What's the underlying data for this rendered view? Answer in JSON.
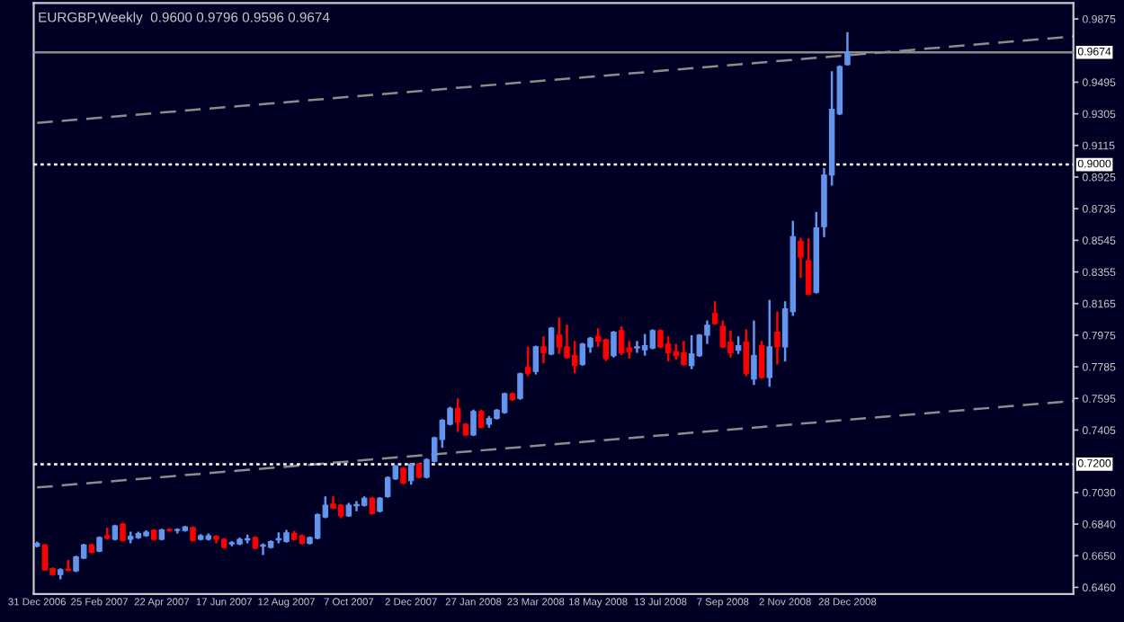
{
  "chart_data": {
    "type": "candlestick",
    "title": "EURGBP,Weekly  0.9600 0.9796 0.9596 0.9674",
    "x": [
      "2006-12-31",
      "2007-01-07",
      "2007-01-14",
      "2007-01-21",
      "2007-01-28",
      "2007-02-04",
      "2007-02-11",
      "2007-02-18",
      "2007-02-25",
      "2007-03-04",
      "2007-03-11",
      "2007-03-18",
      "2007-03-25",
      "2007-04-01",
      "2007-04-08",
      "2007-04-15",
      "2007-04-22",
      "2007-04-29",
      "2007-05-06",
      "2007-05-13",
      "2007-05-20",
      "2007-05-27",
      "2007-06-03",
      "2007-06-10",
      "2007-06-17",
      "2007-06-24",
      "2007-07-01",
      "2007-07-08",
      "2007-07-15",
      "2007-07-22",
      "2007-07-29",
      "2007-08-05",
      "2007-08-12",
      "2007-08-19",
      "2007-08-26",
      "2007-09-02",
      "2007-09-09",
      "2007-09-16",
      "2007-09-23",
      "2007-09-30",
      "2007-10-07",
      "2007-10-14",
      "2007-10-21",
      "2007-10-28",
      "2007-11-04",
      "2007-11-11",
      "2007-11-18",
      "2007-11-25",
      "2007-12-02",
      "2007-12-09",
      "2007-12-16",
      "2007-12-23",
      "2007-12-30",
      "2008-01-06",
      "2008-01-13",
      "2008-01-20",
      "2008-01-27",
      "2008-02-03",
      "2008-02-10",
      "2008-02-17",
      "2008-02-24",
      "2008-03-02",
      "2008-03-09",
      "2008-03-16",
      "2008-03-23",
      "2008-03-30",
      "2008-04-06",
      "2008-04-13",
      "2008-04-20",
      "2008-04-27",
      "2008-05-04",
      "2008-05-11",
      "2008-05-18",
      "2008-05-25",
      "2008-06-01",
      "2008-06-08",
      "2008-06-15",
      "2008-06-22",
      "2008-06-29",
      "2008-07-06",
      "2008-07-13",
      "2008-07-20",
      "2008-07-27",
      "2008-08-03",
      "2008-08-10",
      "2008-08-17",
      "2008-08-24",
      "2008-08-31",
      "2008-09-07",
      "2008-09-14",
      "2008-09-21",
      "2008-09-28",
      "2008-10-05",
      "2008-10-12",
      "2008-10-19",
      "2008-10-26",
      "2008-11-02",
      "2008-11-09",
      "2008-11-16",
      "2008-11-23",
      "2008-11-30",
      "2008-12-07",
      "2008-12-14",
      "2008-12-21",
      "2008-12-28"
    ],
    "ohlc": [
      [
        0.6707,
        0.6735,
        0.67,
        0.6724
      ],
      [
        0.6714,
        0.672,
        0.656,
        0.6566
      ],
      [
        0.6573,
        0.658,
        0.653,
        0.6537
      ],
      [
        0.6537,
        0.6575,
        0.6509,
        0.6566
      ],
      [
        0.657,
        0.6625,
        0.6556,
        0.6563
      ],
      [
        0.6559,
        0.665,
        0.6552,
        0.6643
      ],
      [
        0.6636,
        0.6722,
        0.663,
        0.6714
      ],
      [
        0.6714,
        0.6722,
        0.6665,
        0.6671
      ],
      [
        0.6678,
        0.6766,
        0.6672,
        0.6759
      ],
      [
        0.677,
        0.6819,
        0.6749,
        0.6756
      ],
      [
        0.6749,
        0.6837,
        0.6742,
        0.683
      ],
      [
        0.684,
        0.6848,
        0.6735,
        0.6742
      ],
      [
        0.6749,
        0.6795,
        0.6724,
        0.6766
      ],
      [
        0.6759,
        0.6795,
        0.6752,
        0.6784
      ],
      [
        0.677,
        0.6802,
        0.6763,
        0.6791
      ],
      [
        0.6802,
        0.6809,
        0.6742,
        0.6749
      ],
      [
        0.6749,
        0.6812,
        0.6742,
        0.6805
      ],
      [
        0.6808,
        0.6815,
        0.6795,
        0.6802
      ],
      [
        0.6802,
        0.6815,
        0.6784,
        0.6808
      ],
      [
        0.6802,
        0.683,
        0.6795,
        0.6823
      ],
      [
        0.6819,
        0.6826,
        0.6735,
        0.6742
      ],
      [
        0.6749,
        0.678,
        0.6742,
        0.677
      ],
      [
        0.6749,
        0.6784,
        0.6742,
        0.677
      ],
      [
        0.6766,
        0.6773,
        0.6724,
        0.6749
      ],
      [
        0.6749,
        0.6756,
        0.6693,
        0.67
      ],
      [
        0.6721,
        0.6738,
        0.6707,
        0.6728
      ],
      [
        0.6721,
        0.6759,
        0.6714,
        0.6749
      ],
      [
        0.6745,
        0.6777,
        0.6724,
        0.6752
      ],
      [
        0.6759,
        0.6766,
        0.6689,
        0.6696
      ],
      [
        0.6707,
        0.6724,
        0.6654,
        0.6714
      ],
      [
        0.67,
        0.6742,
        0.6693,
        0.6735
      ],
      [
        0.6745,
        0.6791,
        0.6724,
        0.6752
      ],
      [
        0.6735,
        0.6805,
        0.6728,
        0.6788
      ],
      [
        0.6784,
        0.6798,
        0.6742,
        0.6749
      ],
      [
        0.677,
        0.6777,
        0.6717,
        0.6724
      ],
      [
        0.6724,
        0.6766,
        0.6717,
        0.6759
      ],
      [
        0.6756,
        0.6904,
        0.6749,
        0.6897
      ],
      [
        0.6883,
        0.7006,
        0.6876,
        0.6953
      ],
      [
        0.696,
        0.7006,
        0.6929,
        0.6936
      ],
      [
        0.6953,
        0.696,
        0.6876,
        0.689
      ],
      [
        0.689,
        0.6967,
        0.6883,
        0.6953
      ],
      [
        0.695,
        0.6978,
        0.6918,
        0.6957
      ],
      [
        0.6953,
        0.7006,
        0.6946,
        0.6995
      ],
      [
        0.6995,
        0.7002,
        0.6897,
        0.6904
      ],
      [
        0.6918,
        0.7002,
        0.6911,
        0.6995
      ],
      [
        0.7006,
        0.7126,
        0.6999,
        0.7119
      ],
      [
        0.7112,
        0.7196,
        0.7105,
        0.7189
      ],
      [
        0.7175,
        0.7182,
        0.708,
        0.7087
      ],
      [
        0.7101,
        0.7207,
        0.7077,
        0.72
      ],
      [
        0.72,
        0.7207,
        0.7115,
        0.7122
      ],
      [
        0.7122,
        0.7235,
        0.7115,
        0.7228
      ],
      [
        0.7217,
        0.7365,
        0.721,
        0.7358
      ],
      [
        0.7348,
        0.7471,
        0.7298,
        0.7464
      ],
      [
        0.744,
        0.7545,
        0.7433,
        0.7535
      ],
      [
        0.7535,
        0.7595,
        0.7394,
        0.7454
      ],
      [
        0.744,
        0.7447,
        0.7369,
        0.7376
      ],
      [
        0.7376,
        0.7528,
        0.7369,
        0.7517
      ],
      [
        0.7517,
        0.7528,
        0.7415,
        0.7422
      ],
      [
        0.744,
        0.7489,
        0.7419,
        0.7475
      ],
      [
        0.7475,
        0.7531,
        0.7468,
        0.7524
      ],
      [
        0.751,
        0.763,
        0.7503,
        0.7623
      ],
      [
        0.7623,
        0.763,
        0.7581,
        0.7588
      ],
      [
        0.7595,
        0.775,
        0.7587,
        0.7743
      ],
      [
        0.7781,
        0.7905,
        0.7729,
        0.7746
      ],
      [
        0.7757,
        0.7912,
        0.7739,
        0.7905
      ],
      [
        0.7905,
        0.7968,
        0.7806,
        0.7869
      ],
      [
        0.7862,
        0.8024,
        0.7855,
        0.8017
      ],
      [
        0.7975,
        0.8081,
        0.7862,
        0.7905
      ],
      [
        0.7905,
        0.8038,
        0.7834,
        0.7841
      ],
      [
        0.7852,
        0.794,
        0.7746,
        0.7792
      ],
      [
        0.7799,
        0.7929,
        0.7792,
        0.7922
      ],
      [
        0.7905,
        0.7964,
        0.7869,
        0.7957
      ],
      [
        0.7968,
        0.8017,
        0.7905,
        0.794
      ],
      [
        0.7947,
        0.7954,
        0.782,
        0.7834
      ],
      [
        0.7852,
        0.8,
        0.7841,
        0.7993
      ],
      [
        0.8003,
        0.8028,
        0.7855,
        0.7869
      ],
      [
        0.7898,
        0.794,
        0.7834,
        0.7876
      ],
      [
        0.7898,
        0.794,
        0.7869,
        0.7905
      ],
      [
        0.7887,
        0.7982,
        0.7852,
        0.7912
      ],
      [
        0.7898,
        0.801,
        0.789,
        0.8003
      ],
      [
        0.8003,
        0.801,
        0.7898,
        0.7905
      ],
      [
        0.7922,
        0.7968,
        0.7817,
        0.7869
      ],
      [
        0.7876,
        0.7922,
        0.7827,
        0.7852
      ],
      [
        0.7869,
        0.794,
        0.7792,
        0.7799
      ],
      [
        0.7792,
        0.7975,
        0.7771,
        0.7862
      ],
      [
        0.7852,
        0.7982,
        0.7845,
        0.7975
      ],
      [
        0.7975,
        0.8063,
        0.7922,
        0.8035
      ],
      [
        0.8105,
        0.8179,
        0.8038,
        0.8045
      ],
      [
        0.8028,
        0.8063,
        0.7898,
        0.7905
      ],
      [
        0.7933,
        0.8003,
        0.7841,
        0.7869
      ],
      [
        0.7884,
        0.7968,
        0.7862,
        0.7912
      ],
      [
        0.7933,
        0.801,
        0.7729,
        0.7746
      ],
      [
        0.7711,
        0.8063,
        0.7676,
        0.7852
      ],
      [
        0.7912,
        0.794,
        0.7714,
        0.7721
      ],
      [
        0.7721,
        0.8187,
        0.7665,
        0.7905
      ],
      [
        0.7993,
        0.8116,
        0.7799,
        0.7905
      ],
      [
        0.7905,
        0.8179,
        0.7817,
        0.8134
      ],
      [
        0.8116,
        0.8662,
        0.8091,
        0.8567
      ],
      [
        0.8539,
        0.856,
        0.832,
        0.8444
      ],
      [
        0.8423,
        0.8557,
        0.8215,
        0.8222
      ],
      [
        0.8232,
        0.8715,
        0.8225,
        0.862
      ],
      [
        0.8627,
        0.8979,
        0.8564,
        0.8937
      ],
      [
        0.8937,
        0.9561,
        0.8874,
        0.9332
      ],
      [
        0.9304,
        0.9596,
        0.9297,
        0.9589
      ],
      [
        0.96,
        0.9796,
        0.9596,
        0.9674
      ]
    ],
    "colors": [
      "#6495ed",
      "#ff0000",
      "#ff0000",
      "#6495ed",
      "#ff0000",
      "#6495ed",
      "#6495ed",
      "#ff0000",
      "#6495ed",
      "#ff0000",
      "#6495ed",
      "#ff0000",
      "#6495ed",
      "#6495ed",
      "#6495ed",
      "#ff0000",
      "#6495ed",
      "#ff0000",
      "#6495ed",
      "#6495ed",
      "#ff0000",
      "#6495ed",
      "#6495ed",
      "#ff0000",
      "#ff0000",
      "#6495ed",
      "#6495ed",
      "#6495ed",
      "#ff0000",
      "#6495ed",
      "#6495ed",
      "#6495ed",
      "#6495ed",
      "#ff0000",
      "#ff0000",
      "#6495ed",
      "#6495ed",
      "#6495ed",
      "#ff0000",
      "#ff0000",
      "#6495ed",
      "#6495ed",
      "#6495ed",
      "#ff0000",
      "#6495ed",
      "#6495ed",
      "#6495ed",
      "#ff0000",
      "#6495ed",
      "#ff0000",
      "#6495ed",
      "#6495ed",
      "#6495ed",
      "#6495ed",
      "#ff0000",
      "#ff0000",
      "#6495ed",
      "#ff0000",
      "#6495ed",
      "#6495ed",
      "#6495ed",
      "#ff0000",
      "#6495ed",
      "#ff0000",
      "#6495ed",
      "#ff0000",
      "#6495ed",
      "#ff0000",
      "#ff0000",
      "#ff0000",
      "#6495ed",
      "#6495ed",
      "#ff0000",
      "#ff0000",
      "#6495ed",
      "#ff0000",
      "#ff0000",
      "#6495ed",
      "#6495ed",
      "#6495ed",
      "#ff0000",
      "#ff0000",
      "#ff0000",
      "#ff0000",
      "#6495ed",
      "#6495ed",
      "#6495ed",
      "#ff0000",
      "#ff0000",
      "#ff0000",
      "#6495ed",
      "#ff0000",
      "#6495ed",
      "#ff0000",
      "#6495ed",
      "#ff0000",
      "#6495ed",
      "#6495ed",
      "#ff0000",
      "#ff0000",
      "#6495ed",
      "#6495ed",
      "#6495ed",
      "#6495ed",
      "#6495ed"
    ],
    "series": [
      {
        "type": "line",
        "color": "#8c8c8c",
        "line_style": "dashed",
        "x": [
          "2006-12-31",
          "2009-07-19"
        ],
        "values": [
          0.925,
          0.977
        ]
      },
      {
        "type": "line",
        "color": "#8c8c8c",
        "line_style": "dashed",
        "x": [
          "2006-12-31",
          "2009-07-19"
        ],
        "values": [
          0.706,
          0.758
        ]
      }
    ],
    "ref_lines": [
      {
        "axis": "y",
        "value": 0.9674,
        "label": "0.9674",
        "color": "#8c8c8c",
        "line_style": "solid"
      },
      {
        "axis": "y",
        "value": 0.9,
        "label": "0.9000",
        "color": "#ffffff",
        "line_style": "dotted"
      },
      {
        "axis": "y",
        "value": 0.72,
        "label": "0.7200",
        "color": "#ffffff",
        "line_style": "dotted"
      }
    ],
    "xlim": [
      "2006-12-28",
      "2009-07-19"
    ],
    "xticks": [
      {
        "value": "2006-12-31",
        "label": "31 Dec 2006"
      },
      {
        "value": "2007-02-25",
        "label": "25 Feb 2007"
      },
      {
        "value": "2007-04-22",
        "label": "22 Apr 2007"
      },
      {
        "value": "2007-06-17",
        "label": "17 Jun 2007"
      },
      {
        "value": "2007-08-12",
        "label": "12 Aug 2007"
      },
      {
        "value": "2007-10-07",
        "label": "7 Oct 2007"
      },
      {
        "value": "2007-12-02",
        "label": "2 Dec 2007"
      },
      {
        "value": "2008-01-27",
        "label": "27 Jan 2008"
      },
      {
        "value": "2008-03-23",
        "label": "23 Mar 2008"
      },
      {
        "value": "2008-05-18",
        "label": "18 May 2008"
      },
      {
        "value": "2008-07-13",
        "label": "13 Jul 2008"
      },
      {
        "value": "2008-09-07",
        "label": "7 Sep 2008"
      },
      {
        "value": "2008-11-02",
        "label": "2 Nov 2008"
      },
      {
        "value": "2008-12-28",
        "label": "28 Dec 2008"
      }
    ],
    "ylim": [
      0.642,
      0.997
    ],
    "yticks": [
      {
        "value": 0.9875,
        "label": "0.9875"
      },
      {
        "value": 0.9495,
        "label": "0.9495"
      },
      {
        "value": 0.9305,
        "label": "0.9305"
      },
      {
        "value": 0.9115,
        "label": "0.9115"
      },
      {
        "value": 0.8925,
        "label": "0.8925"
      },
      {
        "value": 0.8735,
        "label": "0.8735"
      },
      {
        "value": 0.8545,
        "label": "0.8545"
      },
      {
        "value": 0.8355,
        "label": "0.8355"
      },
      {
        "value": 0.8165,
        "label": "0.8165"
      },
      {
        "value": 0.7975,
        "label": "0.7975"
      },
      {
        "value": 0.7785,
        "label": "0.7785"
      },
      {
        "value": 0.7595,
        "label": "0.7595"
      },
      {
        "value": 0.7405,
        "label": "0.7405"
      },
      {
        "value": 0.703,
        "label": "0.7030"
      },
      {
        "value": 0.684,
        "label": "0.6840"
      },
      {
        "value": 0.665,
        "label": "0.6650"
      },
      {
        "value": 0.646,
        "label": "0.6460"
      }
    ]
  }
}
